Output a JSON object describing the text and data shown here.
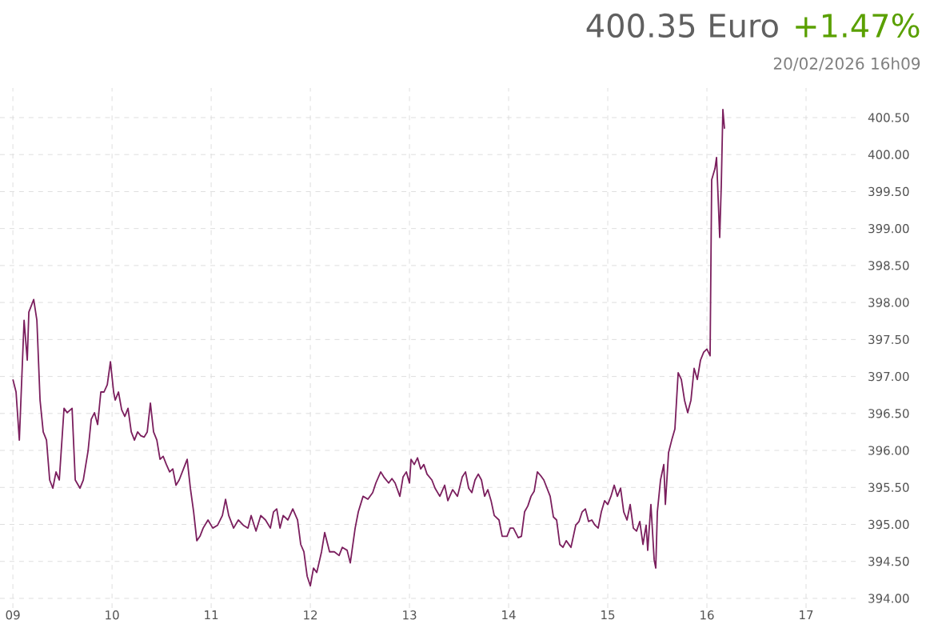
{
  "chart_data": {
    "type": "line",
    "title": "400.35 Euro",
    "subtitle": "20/02/2026   16h09",
    "annotations": [
      "+1.47%"
    ],
    "x": [
      9.0,
      9.032,
      9.065,
      9.113,
      9.145,
      9.161,
      9.21,
      9.242,
      9.274,
      9.306,
      9.339,
      9.371,
      9.403,
      9.435,
      9.468,
      9.516,
      9.548,
      9.597,
      9.629,
      9.677,
      9.71,
      9.758,
      9.79,
      9.823,
      9.855,
      9.887,
      9.919,
      9.952,
      9.984,
      10.016,
      10.032,
      10.065,
      10.097,
      10.129,
      10.161,
      10.194,
      10.226,
      10.258,
      10.29,
      10.323,
      10.355,
      10.387,
      10.419,
      10.452,
      10.484,
      10.516,
      10.548,
      10.581,
      10.613,
      10.645,
      10.677,
      10.726,
      10.758,
      10.79,
      10.823,
      10.855,
      10.887,
      10.919,
      10.968,
      11.016,
      11.065,
      11.113,
      11.145,
      11.177,
      11.226,
      11.274,
      11.323,
      11.371,
      11.403,
      11.452,
      11.5,
      11.548,
      11.597,
      11.629,
      11.661,
      11.694,
      11.726,
      11.774,
      11.823,
      11.871,
      11.903,
      11.935,
      11.968,
      12.0,
      12.032,
      12.065,
      12.113,
      12.145,
      12.194,
      12.242,
      12.29,
      12.323,
      12.371,
      12.403,
      12.452,
      12.484,
      12.532,
      12.581,
      12.629,
      12.661,
      12.71,
      12.742,
      12.79,
      12.823,
      12.855,
      12.903,
      12.935,
      12.968,
      13.0,
      13.016,
      13.048,
      13.081,
      13.113,
      13.145,
      13.177,
      13.226,
      13.258,
      13.306,
      13.355,
      13.387,
      13.435,
      13.484,
      13.532,
      13.565,
      13.597,
      13.629,
      13.661,
      13.694,
      13.726,
      13.758,
      13.79,
      13.823,
      13.855,
      13.903,
      13.935,
      13.984,
      14.016,
      14.048,
      14.097,
      14.129,
      14.161,
      14.194,
      14.226,
      14.258,
      14.29,
      14.323,
      14.355,
      14.387,
      14.419,
      14.452,
      14.484,
      14.516,
      14.548,
      14.581,
      14.629,
      14.677,
      14.71,
      14.742,
      14.774,
      14.806,
      14.839,
      14.871,
      14.903,
      14.935,
      14.968,
      15.0,
      15.032,
      15.065,
      15.097,
      15.129,
      15.161,
      15.194,
      15.226,
      15.258,
      15.29,
      15.323,
      15.355,
      15.387,
      15.403,
      15.435,
      15.468,
      15.484,
      15.5,
      15.532,
      15.565,
      15.581,
      15.613,
      15.645,
      15.677,
      15.71,
      15.742,
      15.774,
      15.806,
      15.839,
      15.871,
      15.903,
      15.935,
      15.968,
      16.0,
      16.032,
      16.048,
      16.081,
      16.097,
      16.129,
      16.145,
      16.161,
      16.177
    ],
    "values": [
      396.96,
      396.79,
      396.14,
      397.76,
      397.22,
      397.87,
      398.04,
      397.76,
      396.68,
      396.25,
      396.14,
      395.6,
      395.49,
      395.71,
      395.6,
      396.57,
      396.51,
      396.57,
      395.6,
      395.49,
      395.6,
      395.99,
      396.42,
      396.51,
      396.35,
      396.79,
      396.79,
      396.89,
      397.2,
      396.79,
      396.68,
      396.79,
      396.55,
      396.46,
      396.57,
      396.25,
      396.14,
      396.25,
      396.2,
      396.18,
      396.25,
      396.64,
      396.25,
      396.14,
      395.88,
      395.92,
      395.81,
      395.71,
      395.75,
      395.53,
      395.6,
      395.77,
      395.88,
      395.49,
      395.17,
      394.78,
      394.84,
      394.95,
      395.06,
      394.95,
      394.99,
      395.12,
      395.34,
      395.12,
      394.95,
      395.06,
      394.99,
      394.95,
      395.12,
      394.91,
      395.12,
      395.06,
      394.95,
      395.17,
      395.21,
      394.95,
      395.12,
      395.06,
      395.21,
      395.06,
      394.73,
      394.63,
      394.3,
      394.17,
      394.41,
      394.35,
      394.63,
      394.89,
      394.63,
      394.63,
      394.58,
      394.69,
      394.65,
      394.48,
      394.95,
      395.17,
      395.38,
      395.34,
      395.43,
      395.56,
      395.71,
      395.64,
      395.56,
      395.62,
      395.56,
      395.38,
      395.64,
      395.71,
      395.56,
      395.88,
      395.81,
      395.9,
      395.75,
      395.81,
      395.68,
      395.6,
      395.49,
      395.38,
      395.53,
      395.32,
      395.47,
      395.38,
      395.64,
      395.71,
      395.49,
      395.43,
      395.6,
      395.68,
      395.6,
      395.38,
      395.47,
      395.32,
      395.12,
      395.06,
      394.84,
      394.84,
      394.95,
      394.95,
      394.82,
      394.84,
      395.17,
      395.25,
      395.38,
      395.45,
      395.71,
      395.66,
      395.6,
      395.49,
      395.38,
      395.1,
      395.06,
      394.73,
      394.69,
      394.78,
      394.69,
      394.99,
      395.04,
      395.17,
      395.21,
      395.04,
      395.06,
      394.99,
      394.95,
      395.17,
      395.32,
      395.27,
      395.38,
      395.53,
      395.38,
      395.49,
      395.17,
      395.06,
      395.27,
      394.95,
      394.91,
      395.04,
      394.73,
      394.99,
      394.65,
      395.27,
      394.52,
      394.41,
      395.17,
      395.6,
      395.81,
      395.27,
      395.97,
      396.14,
      396.29,
      397.05,
      396.96,
      396.68,
      396.51,
      396.68,
      397.11,
      396.96,
      397.22,
      397.33,
      397.37,
      397.28,
      399.66,
      399.81,
      399.96,
      398.88,
      399.59,
      400.61,
      400.35
    ],
    "color": "#7b1f5e",
    "xlim": [
      8.87,
      17.5
    ],
    "ylim": [
      393.87,
      400.9
    ],
    "xticks": [
      {
        "value": 9,
        "label": "09"
      },
      10,
      11,
      12,
      13,
      14,
      15,
      16,
      17
    ],
    "yticks": [
      {
        "value": 394,
        "label": "394.00"
      },
      {
        "value": 394.5,
        "label": "394.50"
      },
      {
        "value": 395,
        "label": "395.00"
      },
      {
        "value": 395.5,
        "label": "395.50"
      },
      {
        "value": 396,
        "label": "396.00"
      },
      {
        "value": 396.5,
        "label": "396.50"
      },
      {
        "value": 397,
        "label": "397.00"
      },
      {
        "value": 397.5,
        "label": "397.50"
      },
      {
        "value": 398,
        "label": "398.00"
      },
      {
        "value": 398.5,
        "label": "398.50"
      },
      {
        "value": 399,
        "label": "399.00"
      },
      {
        "value": 399.5,
        "label": "399.50"
      },
      {
        "value": 400,
        "label": "400.00"
      },
      {
        "value": 400.5,
        "label": "400.50"
      }
    ],
    "grid": true,
    "marker": "none",
    "line_style": "solid"
  }
}
